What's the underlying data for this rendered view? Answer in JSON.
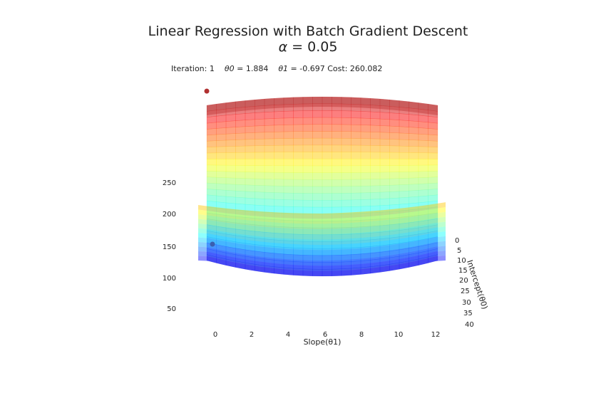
{
  "title": {
    "line1": "Linear Regression with Batch Gradient Descent",
    "line2_symbol": "α",
    "line2_rest": " = 0.05"
  },
  "status": {
    "iteration_label": "Iteration:",
    "iteration": "1",
    "theta0_label": "θ0 =",
    "theta0": "1.884",
    "theta1_label": "θ1 =",
    "theta1": "-0.697",
    "cost_label": "Cost:",
    "cost": "260.082"
  },
  "chart_data": {
    "type": "surface",
    "colormap": "jet",
    "alpha": 0.5,
    "xlabel": "Slope(θ1)",
    "ylabel": "Intercept(θ0)",
    "x_ticks": [
      "0",
      "2",
      "4",
      "6",
      "8",
      "10",
      "12"
    ],
    "y_ticks": [
      "0",
      "5",
      "10",
      "15",
      "20",
      "25",
      "30",
      "35",
      "40"
    ],
    "z_ticks": [
      "50",
      "100",
      "150",
      "200",
      "250"
    ],
    "current_point": {
      "theta1": -0.697,
      "theta0": 1.884,
      "cost": 260.082,
      "color": "#b03030"
    },
    "projection_point": {
      "color": "#3a5fb0"
    },
    "grid": false
  }
}
